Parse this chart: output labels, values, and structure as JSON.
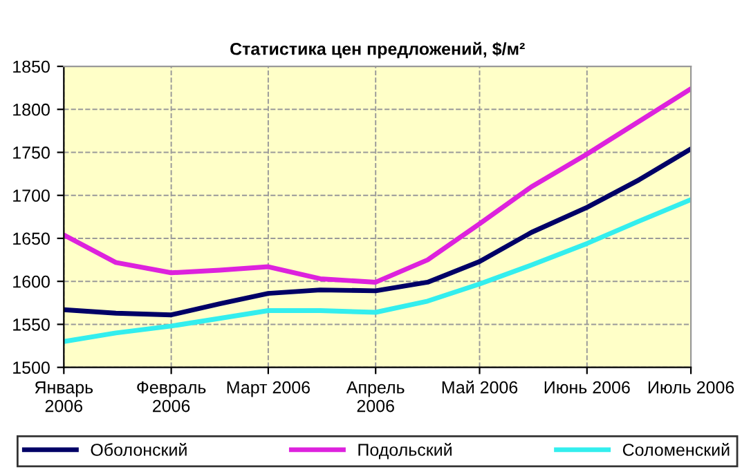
{
  "chart_data": {
    "type": "line",
    "title": "Статистика цен предложений, $/м²",
    "x": [
      "2006-01-01",
      "2006-01-16",
      "2006-02-01",
      "2006-02-15",
      "2006-03-01",
      "2006-03-16",
      "2006-04-01",
      "2006-04-16",
      "2006-05-01",
      "2006-05-16",
      "2006-06-01",
      "2006-06-16",
      "2006-07-01"
    ],
    "series": [
      {
        "name": "Оболонский",
        "color": "#000066",
        "values": [
          1567,
          1563,
          1561,
          1574,
          1586,
          1590,
          1589,
          1599,
          1623,
          1657,
          1686,
          1718,
          1754
        ]
      },
      {
        "name": "Подольский",
        "color": "#dd22dd",
        "values": [
          1654,
          1622,
          1610,
          1613,
          1617,
          1603,
          1599,
          1625,
          1667,
          1710,
          1748,
          1786,
          1824
        ]
      },
      {
        "name": "Соломенский",
        "color": "#33eeee",
        "values": [
          1530,
          1540,
          1548,
          1557,
          1566,
          1566,
          1564,
          1577,
          1597,
          1619,
          1644,
          1670,
          1695
        ]
      }
    ],
    "xlim": [
      "2006-01-01",
      "2006-07-01"
    ],
    "xticks": [
      {
        "value": "2006-01-01",
        "label": "Январь\n2006"
      },
      {
        "value": "2006-02-01",
        "label": "Февраль\n2006"
      },
      {
        "value": "2006-03-01",
        "label": "Март 2006"
      },
      {
        "value": "2006-04-01",
        "label": "Апрель\n2006"
      },
      {
        "value": "2006-05-01",
        "label": "Май 2006"
      },
      {
        "value": "2006-06-01",
        "label": "Июнь 2006"
      },
      {
        "value": "2006-07-01",
        "label": "Июль 2006"
      }
    ],
    "ylim": [
      1500,
      1850
    ],
    "yticks": [
      1500,
      1550,
      1600,
      1650,
      1700,
      1750,
      1800,
      1850
    ],
    "grid": true,
    "legend": "bottom",
    "marker": "none",
    "line_style": "solid"
  }
}
